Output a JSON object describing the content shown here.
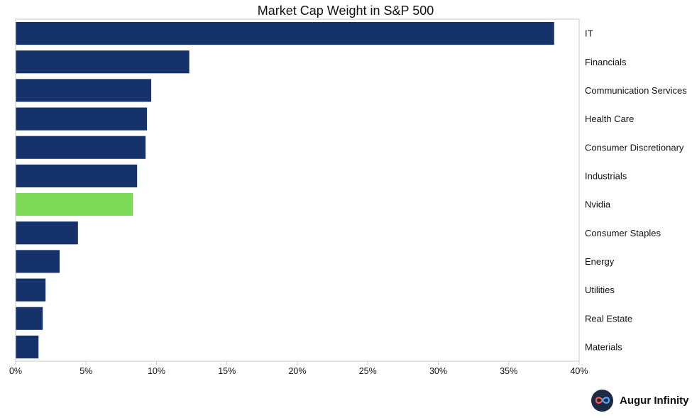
{
  "chart_data": {
    "type": "bar",
    "orientation": "horizontal",
    "title": "Market Cap Weight in S&P 500",
    "xlabel": "",
    "ylabel": "",
    "xlim": [
      0,
      40
    ],
    "x_ticks": [
      "0%",
      "5%",
      "10%",
      "15%",
      "20%",
      "25%",
      "30%",
      "35%",
      "40%"
    ],
    "x_tick_values": [
      0,
      5,
      10,
      15,
      20,
      25,
      30,
      35,
      40
    ],
    "category_axis_side": "right",
    "grid": false,
    "categories": [
      "IT",
      "Financials",
      "Communication Services",
      "Health Care",
      "Consumer Discretionary",
      "Industrials",
      "Nvidia",
      "Consumer Staples",
      "Energy",
      "Utilities",
      "Real Estate",
      "Materials"
    ],
    "values": [
      38.2,
      12.3,
      9.6,
      9.3,
      9.2,
      8.6,
      8.3,
      4.4,
      3.1,
      2.1,
      1.9,
      1.6
    ],
    "colors": {
      "default": "#15326b",
      "highlight": "#7ed957",
      "highlight_category": "Nvidia"
    }
  },
  "branding": {
    "logo_icon": "infinity-icon",
    "name": "Augur Infinity"
  }
}
